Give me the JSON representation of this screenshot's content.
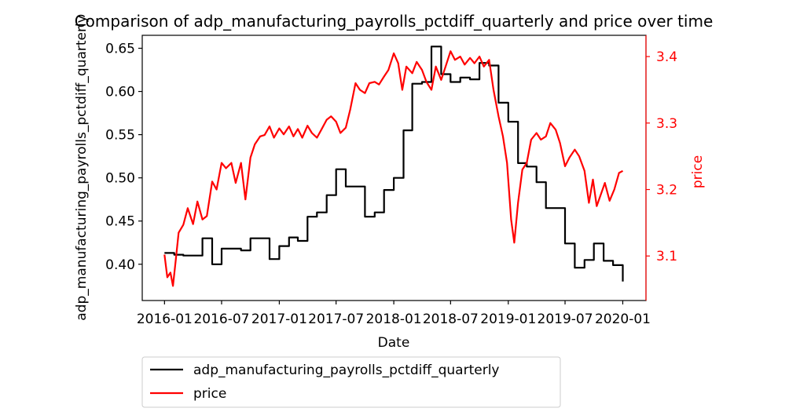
{
  "chart_data": {
    "type": "line",
    "title": "Comparison of adp_manufacturing_payrolls_pctdiff_quarterly and price over time",
    "xlabel": "Date",
    "ylabel_left": "adp_manufacturing_payrolls_pctdiff_quarterly",
    "ylabel_right": "price",
    "x_ticks": [
      "2016-01",
      "2016-07",
      "2017-01",
      "2017-07",
      "2018-01",
      "2018-07",
      "2019-01",
      "2019-07",
      "2020-01"
    ],
    "y_left_ticks": [
      "0.40",
      "0.45",
      "0.50",
      "0.55",
      "0.60",
      "0.65"
    ],
    "y_right_ticks": [
      "3.1",
      "3.2",
      "3.3",
      "3.4"
    ],
    "y_left_lim": [
      0.358,
      0.665
    ],
    "y_right_lim": [
      3.033,
      3.432
    ],
    "x_lim": [
      "2015-10-22",
      "2020-03-15"
    ],
    "grid": false,
    "legend_position": "below",
    "colors": {
      "adp": "#000000",
      "price": "#ff0000",
      "axis": "#000000",
      "right_axis": "#ff0000"
    },
    "series": [
      {
        "name": "adp_manufacturing_payrolls_pctdiff_quarterly",
        "axis": "left",
        "color": "#000000",
        "step": true,
        "points": [
          [
            "2016-01-01",
            0.413
          ],
          [
            "2016-02-01",
            0.411
          ],
          [
            "2016-03-01",
            0.41
          ],
          [
            "2016-04-01",
            0.41
          ],
          [
            "2016-05-01",
            0.43
          ],
          [
            "2016-06-01",
            0.4
          ],
          [
            "2016-07-01",
            0.418
          ],
          [
            "2016-08-01",
            0.418
          ],
          [
            "2016-09-01",
            0.416
          ],
          [
            "2016-10-01",
            0.43
          ],
          [
            "2016-11-01",
            0.43
          ],
          [
            "2016-12-01",
            0.406
          ],
          [
            "2017-01-01",
            0.421
          ],
          [
            "2017-02-01",
            0.431
          ],
          [
            "2017-03-01",
            0.427
          ],
          [
            "2017-04-01",
            0.455
          ],
          [
            "2017-05-01",
            0.46
          ],
          [
            "2017-06-01",
            0.48
          ],
          [
            "2017-07-01",
            0.51
          ],
          [
            "2017-08-01",
            0.49
          ],
          [
            "2017-09-01",
            0.49
          ],
          [
            "2017-10-01",
            0.455
          ],
          [
            "2017-11-01",
            0.46
          ],
          [
            "2017-12-01",
            0.486
          ],
          [
            "2018-01-01",
            0.5
          ],
          [
            "2018-02-01",
            0.555
          ],
          [
            "2018-03-01",
            0.609
          ],
          [
            "2018-04-01",
            0.611
          ],
          [
            "2018-05-01",
            0.652
          ],
          [
            "2018-06-01",
            0.62
          ],
          [
            "2018-07-01",
            0.611
          ],
          [
            "2018-08-01",
            0.616
          ],
          [
            "2018-09-01",
            0.614
          ],
          [
            "2018-10-01",
            0.633
          ],
          [
            "2018-11-01",
            0.63
          ],
          [
            "2018-12-01",
            0.587
          ],
          [
            "2019-01-01",
            0.565
          ],
          [
            "2019-02-01",
            0.517
          ],
          [
            "2019-03-01",
            0.513
          ],
          [
            "2019-04-01",
            0.495
          ],
          [
            "2019-05-01",
            0.465
          ],
          [
            "2019-06-01",
            0.465
          ],
          [
            "2019-07-01",
            0.424
          ],
          [
            "2019-08-01",
            0.396
          ],
          [
            "2019-09-01",
            0.405
          ],
          [
            "2019-10-01",
            0.424
          ],
          [
            "2019-11-01",
            0.404
          ],
          [
            "2019-12-01",
            0.399
          ],
          [
            "2020-01-01",
            0.38
          ]
        ]
      },
      {
        "name": "price",
        "axis": "right",
        "color": "#ff0000",
        "step": false,
        "points": [
          [
            "2016-01-01",
            3.102
          ],
          [
            "2016-01-10",
            3.068
          ],
          [
            "2016-01-20",
            3.075
          ],
          [
            "2016-01-28",
            3.055
          ],
          [
            "2016-02-05",
            3.09
          ],
          [
            "2016-02-15",
            3.135
          ],
          [
            "2016-03-01",
            3.147
          ],
          [
            "2016-03-15",
            3.172
          ],
          [
            "2016-04-01",
            3.148
          ],
          [
            "2016-04-15",
            3.182
          ],
          [
            "2016-05-01",
            3.155
          ],
          [
            "2016-05-15",
            3.16
          ],
          [
            "2016-06-01",
            3.212
          ],
          [
            "2016-06-15",
            3.2
          ],
          [
            "2016-07-01",
            3.24
          ],
          [
            "2016-07-15",
            3.232
          ],
          [
            "2016-08-01",
            3.24
          ],
          [
            "2016-08-15",
            3.21
          ],
          [
            "2016-09-01",
            3.24
          ],
          [
            "2016-09-15",
            3.185
          ],
          [
            "2016-10-01",
            3.248
          ],
          [
            "2016-10-15",
            3.268
          ],
          [
            "2016-11-01",
            3.28
          ],
          [
            "2016-11-15",
            3.282
          ],
          [
            "2016-12-01",
            3.295
          ],
          [
            "2016-12-15",
            3.278
          ],
          [
            "2017-01-01",
            3.292
          ],
          [
            "2017-01-15",
            3.283
          ],
          [
            "2017-02-01",
            3.295
          ],
          [
            "2017-02-15",
            3.28
          ],
          [
            "2017-03-01",
            3.291
          ],
          [
            "2017-03-15",
            3.278
          ],
          [
            "2017-04-01",
            3.296
          ],
          [
            "2017-04-15",
            3.285
          ],
          [
            "2017-05-01",
            3.278
          ],
          [
            "2017-05-15",
            3.29
          ],
          [
            "2017-06-01",
            3.305
          ],
          [
            "2017-06-15",
            3.31
          ],
          [
            "2017-07-01",
            3.302
          ],
          [
            "2017-07-15",
            3.285
          ],
          [
            "2017-08-01",
            3.293
          ],
          [
            "2017-08-15",
            3.32
          ],
          [
            "2017-09-01",
            3.36
          ],
          [
            "2017-09-15",
            3.35
          ],
          [
            "2017-10-01",
            3.345
          ],
          [
            "2017-10-15",
            3.36
          ],
          [
            "2017-11-01",
            3.362
          ],
          [
            "2017-11-15",
            3.358
          ],
          [
            "2017-12-01",
            3.37
          ],
          [
            "2017-12-15",
            3.38
          ],
          [
            "2018-01-01",
            3.405
          ],
          [
            "2018-01-15",
            3.39
          ],
          [
            "2018-01-28",
            3.35
          ],
          [
            "2018-02-10",
            3.385
          ],
          [
            "2018-03-01",
            3.375
          ],
          [
            "2018-03-15",
            3.392
          ],
          [
            "2018-04-01",
            3.38
          ],
          [
            "2018-04-15",
            3.362
          ],
          [
            "2018-05-01",
            3.35
          ],
          [
            "2018-05-15",
            3.385
          ],
          [
            "2018-06-01",
            3.365
          ],
          [
            "2018-06-15",
            3.385
          ],
          [
            "2018-07-01",
            3.408
          ],
          [
            "2018-07-15",
            3.395
          ],
          [
            "2018-08-01",
            3.4
          ],
          [
            "2018-08-15",
            3.388
          ],
          [
            "2018-09-01",
            3.398
          ],
          [
            "2018-09-15",
            3.39
          ],
          [
            "2018-10-01",
            3.4
          ],
          [
            "2018-10-15",
            3.385
          ],
          [
            "2018-11-01",
            3.395
          ],
          [
            "2018-11-15",
            3.35
          ],
          [
            "2018-12-01",
            3.31
          ],
          [
            "2018-12-15",
            3.28
          ],
          [
            "2018-12-28",
            3.24
          ],
          [
            "2019-01-10",
            3.155
          ],
          [
            "2019-01-20",
            3.12
          ],
          [
            "2019-02-01",
            3.18
          ],
          [
            "2019-02-15",
            3.23
          ],
          [
            "2019-03-01",
            3.24
          ],
          [
            "2019-03-15",
            3.275
          ],
          [
            "2019-04-01",
            3.285
          ],
          [
            "2019-04-15",
            3.275
          ],
          [
            "2019-05-01",
            3.28
          ],
          [
            "2019-05-15",
            3.3
          ],
          [
            "2019-06-01",
            3.29
          ],
          [
            "2019-06-15",
            3.27
          ],
          [
            "2019-07-01",
            3.235
          ],
          [
            "2019-07-15",
            3.248
          ],
          [
            "2019-08-01",
            3.26
          ],
          [
            "2019-08-15",
            3.25
          ],
          [
            "2019-09-01",
            3.228
          ],
          [
            "2019-09-15",
            3.18
          ],
          [
            "2019-09-28",
            3.215
          ],
          [
            "2019-10-10",
            3.175
          ],
          [
            "2019-10-25",
            3.195
          ],
          [
            "2019-11-05",
            3.21
          ],
          [
            "2019-11-20",
            3.183
          ],
          [
            "2019-12-05",
            3.2
          ],
          [
            "2019-12-20",
            3.225
          ],
          [
            "2020-01-01",
            3.228
          ]
        ]
      }
    ]
  }
}
